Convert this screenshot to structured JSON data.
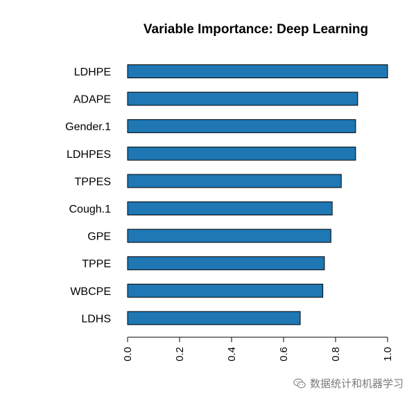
{
  "chart_data": {
    "type": "bar",
    "orientation": "horizontal",
    "title": "Variable Importance: Deep Learning",
    "categories": [
      "LDHPE",
      "ADAPE",
      "Gender.1",
      "LDHPES",
      "TPPES",
      "Cough.1",
      "GPE",
      "TPPE",
      "WBCPE",
      "LDHS"
    ],
    "values": [
      1.0,
      0.885,
      0.877,
      0.877,
      0.822,
      0.787,
      0.782,
      0.757,
      0.751,
      0.664
    ],
    "xlim": [
      0,
      1
    ],
    "xticks": [
      "0.0",
      "0.2",
      "0.4",
      "0.6",
      "0.8",
      "1.0"
    ],
    "xtick_values": [
      0,
      0.2,
      0.4,
      0.6,
      0.8,
      1.0
    ],
    "grid": false,
    "bar_color": "#1f77b4",
    "bar_edge_color": "#000000"
  },
  "watermark": {
    "text": "数据统计和机器学习",
    "icon": "wechat-icon"
  }
}
